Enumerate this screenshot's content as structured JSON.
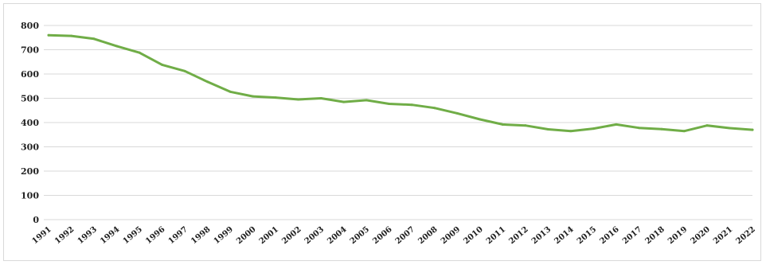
{
  "chart_data": {
    "type": "line",
    "title": "",
    "xlabel": "",
    "ylabel": "",
    "ylim": [
      0,
      800
    ],
    "yticks": [
      "0",
      "100",
      "200",
      "300",
      "400",
      "500",
      "600",
      "700",
      "800"
    ],
    "grid": true,
    "legend": "none",
    "line_color": "#70ad47",
    "categories": [
      "1991",
      "1992",
      "1993",
      "1994",
      "1995",
      "1996",
      "1997",
      "1998",
      "1999",
      "2000",
      "2001",
      "2002",
      "2003",
      "2004",
      "2005",
      "2006",
      "2007",
      "2008",
      "2009",
      "2010",
      "2011",
      "2012",
      "2013",
      "2014",
      "2015",
      "2016",
      "2017",
      "2018",
      "2019",
      "2020",
      "2021",
      "2022"
    ],
    "series": [
      {
        "values": [
          760,
          757,
          745,
          715,
          688,
          638,
          612,
          568,
          527,
          508,
          503,
          495,
          500,
          485,
          492,
          477,
          473,
          460,
          438,
          413,
          392,
          388,
          372,
          365,
          375,
          392,
          378,
          373,
          365,
          388,
          377,
          370
        ]
      }
    ]
  }
}
